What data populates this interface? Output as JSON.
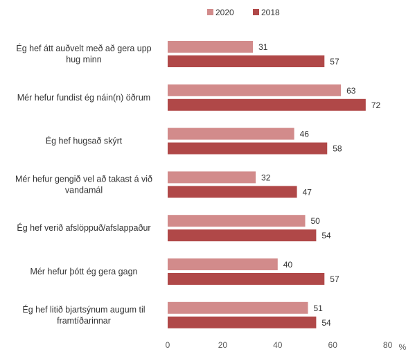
{
  "chart_data": {
    "type": "bar",
    "orientation": "horizontal",
    "categories": [
      [
        "Ég hef átt auðvelt með að gera upp",
        "hug minn"
      ],
      [
        "Mér hefur fundist ég náin(n) öðrum"
      ],
      [
        "Ég hef hugsað skýrt"
      ],
      [
        "Mér hefur gengið vel að takast á við",
        "vandamál"
      ],
      [
        "Ég hef verið afslöppuð/afslappaður"
      ],
      [
        "Mér hefur þótt ég gera gagn"
      ],
      [
        "Ég hef litið bjartsýnum augum til",
        "framtíðarinnar"
      ]
    ],
    "series": [
      {
        "name": "2020",
        "color": "#d28b8b",
        "values": [
          31,
          63,
          46,
          32,
          50,
          40,
          51
        ]
      },
      {
        "name": "2018",
        "color": "#b04848",
        "values": [
          57,
          72,
          58,
          47,
          54,
          57,
          54
        ]
      }
    ],
    "xlim": [
      0,
      80
    ],
    "xticks": [
      "0",
      "20",
      "40",
      "60",
      "80"
    ],
    "xunit": "%",
    "legend_position": "top",
    "grid": false
  }
}
